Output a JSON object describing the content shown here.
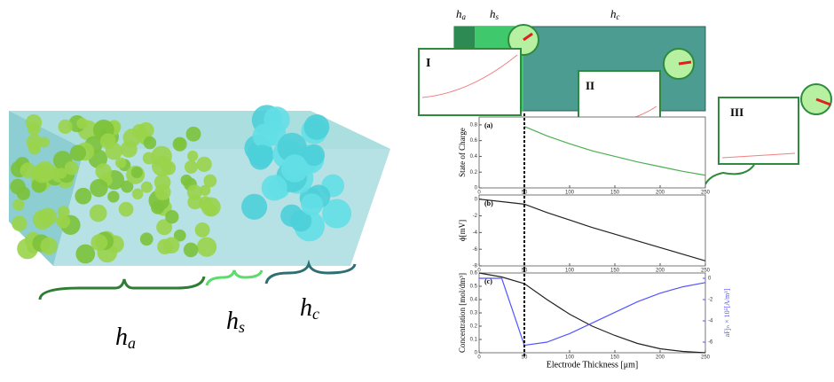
{
  "illustration": {
    "labels": [
      {
        "main": "h",
        "sub": "a"
      },
      {
        "main": "h",
        "sub": "s"
      },
      {
        "main": "h",
        "sub": "c"
      }
    ]
  },
  "schematic": {
    "labels": [
      {
        "main": "h",
        "sub": "a"
      },
      {
        "main": "h",
        "sub": "s"
      },
      {
        "main": "h",
        "sub": "c"
      }
    ],
    "insets": [
      "I",
      "II",
      "III"
    ]
  },
  "chart_data": [
    {
      "type": "line",
      "panel": "(a)",
      "ylabel": "State of Charge",
      "x": [
        0,
        25,
        50,
        75,
        100,
        125,
        150,
        175,
        200,
        225,
        250
      ],
      "series": [
        {
          "color": "#4caf50",
          "values": [
            null,
            null,
            0.78,
            0.66,
            0.56,
            0.47,
            0.4,
            0.33,
            0.27,
            0.21,
            0.16
          ]
        }
      ],
      "xlim": [
        0,
        250
      ],
      "xticks": [
        0,
        50,
        100,
        150,
        200,
        250
      ],
      "ylim": [
        0,
        0.9
      ],
      "yticks": [
        0,
        0.2,
        0.4,
        0.6,
        0.8
      ],
      "vline": 50
    },
    {
      "type": "line",
      "panel": "(b)",
      "ylabel": "ϕ[mV]",
      "x": [
        0,
        25,
        50,
        75,
        100,
        125,
        150,
        175,
        200,
        225,
        250
      ],
      "series": [
        {
          "color": "#222222",
          "values": [
            0,
            -0.3,
            -0.6,
            -1.6,
            -2.5,
            -3.4,
            -4.2,
            -5.0,
            -5.8,
            -6.6,
            -7.4
          ]
        }
      ],
      "xlim": [
        0,
        250
      ],
      "xticks": [
        0,
        50,
        100,
        150,
        200,
        250
      ],
      "ylim": [
        -8,
        0.5
      ],
      "yticks": [
        0,
        -2,
        -4,
        -6,
        -8
      ],
      "vline": 50
    },
    {
      "type": "line",
      "panel": "(c)",
      "ylabel": "Concentration [mol/dm³]",
      "y2label": "aFjₙ × 10⁵[A/m³]",
      "xlabel": "Electrode Thickness [μm]",
      "x": [
        0,
        25,
        50,
        75,
        100,
        125,
        150,
        175,
        200,
        225,
        250
      ],
      "series": [
        {
          "color": "#222222",
          "values": [
            0.6,
            0.57,
            0.52,
            0.4,
            0.29,
            0.2,
            0.13,
            0.07,
            0.03,
            0.01,
            0
          ]
        },
        {
          "color": "#5555ff",
          "axis": "y2",
          "values": [
            0,
            0,
            -6.3,
            -6.0,
            -5.2,
            -4.2,
            -3.2,
            -2.2,
            -1.4,
            -0.8,
            -0.4
          ]
        }
      ],
      "xlim": [
        0,
        250
      ],
      "xticks": [
        0,
        50,
        100,
        150,
        200,
        250
      ],
      "ylim": [
        0,
        0.6
      ],
      "yticks": [
        0,
        0.1,
        0.2,
        0.3,
        0.4,
        0.5,
        0.6
      ],
      "y2lim": [
        -7,
        0.5
      ],
      "y2ticks": [
        0,
        -2,
        -4,
        -6
      ],
      "vline": 50
    }
  ]
}
